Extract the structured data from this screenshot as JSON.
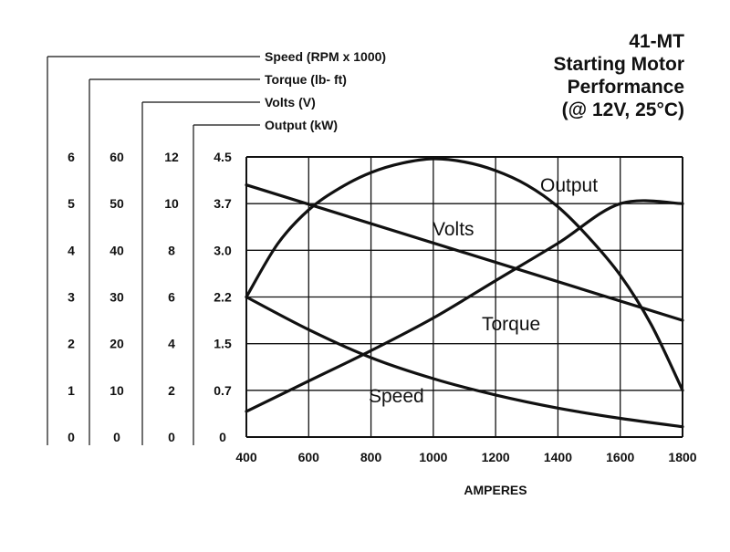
{
  "title_lines": [
    "41-MT",
    "Starting Motor",
    "Performance",
    "(@ 12V, 25°C)"
  ],
  "colors": {
    "ink": "#111111",
    "grid": "#111111",
    "background": "#ffffff"
  },
  "chart_data": {
    "type": "line",
    "title": "41-MT Starting Motor Performance (@ 12V, 25°C)",
    "xlabel": "AMPERES",
    "x_ticks": [
      400,
      600,
      800,
      1000,
      1200,
      1400,
      1600,
      1800
    ],
    "xlim": [
      400,
      1800
    ],
    "grid": true,
    "y_axes": [
      {
        "name": "Speed (RPM x 1000)",
        "ticks": [
          "0",
          "1",
          "2",
          "3",
          "4",
          "5",
          "6"
        ],
        "range": [
          0,
          6
        ]
      },
      {
        "name": "Torque (lb- ft)",
        "ticks": [
          "0",
          "10",
          "20",
          "30",
          "40",
          "50",
          "60"
        ],
        "range": [
          0,
          60
        ]
      },
      {
        "name": "Volts (V)",
        "ticks": [
          "0",
          "2",
          "4",
          "6",
          "8",
          "10",
          "12"
        ],
        "range": [
          0,
          12
        ]
      },
      {
        "name": "Output (kW)",
        "ticks": [
          "0",
          "0.7",
          "1.5",
          "2.2",
          "3.0",
          "3.7",
          "4.5"
        ],
        "range": [
          0,
          4.5
        ]
      }
    ],
    "series": [
      {
        "name": "Output",
        "axis": "Output (kW)",
        "x": [
          400,
          500,
          600,
          700,
          800,
          900,
          1000,
          1100,
          1200,
          1300,
          1400,
          1500,
          1600,
          1700,
          1800
        ],
        "y": [
          2.25,
          3.1,
          3.65,
          4.0,
          4.25,
          4.4,
          4.47,
          4.42,
          4.28,
          4.05,
          3.7,
          3.2,
          2.6,
          1.8,
          0.75
        ]
      },
      {
        "name": "Volts",
        "axis": "Volts (V)",
        "x": [
          400,
          1800
        ],
        "y": [
          10.8,
          5.0
        ]
      },
      {
        "name": "Torque",
        "axis": "Torque (lb- ft)",
        "x": [
          400,
          600,
          800,
          1000,
          1200,
          1400,
          1600,
          1800
        ],
        "y": [
          5.5,
          12.0,
          18.5,
          25.5,
          33.5,
          41.5,
          50.0,
          50.0
        ]
      },
      {
        "name": "Speed",
        "axis": "Speed (RPM x 1000)",
        "x": [
          400,
          600,
          800,
          1000,
          1200,
          1400,
          1600,
          1800
        ],
        "y": [
          3.0,
          2.3,
          1.7,
          1.25,
          0.9,
          0.62,
          0.4,
          0.22
        ]
      }
    ]
  }
}
